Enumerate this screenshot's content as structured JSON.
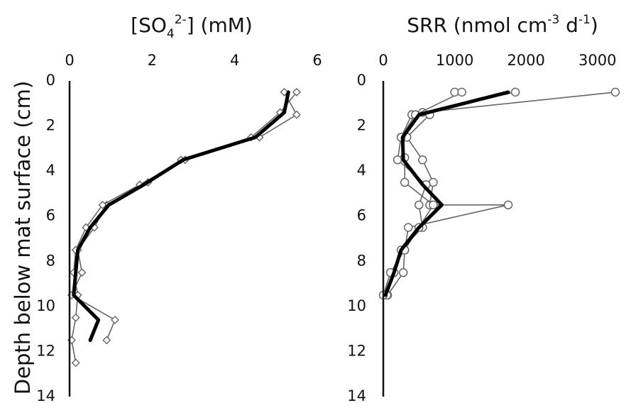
{
  "ylabel": "Depth below mat surface (cm)",
  "chart_data": [
    {
      "type": "line",
      "title": "[SO4 2-] (mM)",
      "title_parts": {
        "pre": "[SO",
        "sub": "4",
        "sup": "2-",
        "post": "] (mM)"
      },
      "xlim": [
        0,
        6
      ],
      "ylim": [
        0,
        14
      ],
      "x_ticks": [
        "0",
        "2",
        "4",
        "6"
      ],
      "y_ticks": [
        "0",
        "2",
        "4",
        "6",
        "8",
        "10",
        "12",
        "14"
      ],
      "ylabel": "Depth below mat surface (cm)",
      "series": [
        {
          "style": "replicate",
          "marker": "diamond",
          "points": [
            [
              5.2,
              0.5
            ],
            [
              5.5,
              1.5
            ],
            [
              4.6,
              2.5
            ],
            [
              2.7,
              3.5
            ],
            [
              1.9,
              4.5
            ],
            [
              0.9,
              5.5
            ],
            [
              0.6,
              6.5
            ],
            [
              0.2,
              7.5
            ],
            [
              0.3,
              8.5
            ],
            [
              0.05,
              9.5
            ],
            [
              1.1,
              10.6
            ],
            [
              0.9,
              11.5
            ]
          ]
        },
        {
          "style": "replicate",
          "marker": "diamond",
          "points": [
            [
              5.5,
              0.5
            ],
            [
              5.1,
              1.4
            ],
            [
              4.4,
              2.5
            ],
            [
              2.8,
              3.5
            ],
            [
              1.7,
              4.6
            ],
            [
              0.8,
              5.5
            ],
            [
              0.4,
              6.5
            ],
            [
              0.15,
              7.5
            ],
            [
              0.1,
              8.5
            ],
            [
              0.2,
              9.5
            ],
            [
              0.15,
              10.5
            ],
            [
              0.05,
              11.5
            ],
            [
              0.15,
              12.5
            ]
          ]
        },
        {
          "style": "mean",
          "marker": "none",
          "points": [
            [
              5.3,
              0.5
            ],
            [
              5.2,
              1.4
            ],
            [
              4.5,
              2.5
            ],
            [
              2.75,
              3.5
            ],
            [
              1.8,
              4.6
            ],
            [
              0.95,
              5.5
            ],
            [
              0.5,
              6.5
            ],
            [
              0.2,
              7.5
            ],
            [
              0.15,
              8.5
            ],
            [
              0.1,
              9.5
            ],
            [
              0.7,
              10.6
            ],
            [
              0.5,
              11.5
            ]
          ]
        }
      ]
    },
    {
      "type": "line",
      "title": "SRR (nmol cm-3 d-1)",
      "title_parts": {
        "pre": "SRR (nmol cm",
        "sup1": "-3",
        "mid": " d",
        "sup2": "-1",
        "post": ")"
      },
      "xlim": [
        0,
        3400
      ],
      "ylim": [
        0,
        14
      ],
      "x_ticks": [
        "0",
        "1000",
        "2000",
        "3000"
      ],
      "x_tick_values": [
        0,
        1000,
        2000,
        3000
      ],
      "y_ticks": [
        "0",
        "2",
        "4",
        "6",
        "8",
        "10",
        "12",
        "14"
      ],
      "series": [
        {
          "style": "replicate",
          "marker": "circle",
          "points": [
            [
              3250,
              0.5
            ],
            [
              550,
              1.4
            ],
            [
              650,
              1.5
            ],
            [
              330,
              2.5
            ],
            [
              550,
              3.5
            ],
            [
              700,
              4.5
            ],
            [
              650,
              5.5
            ],
            [
              1750,
              5.5
            ],
            [
              350,
              6.5
            ],
            [
              300,
              7.5
            ],
            [
              280,
              8.5
            ],
            [
              60,
              9.5
            ]
          ]
        },
        {
          "style": "replicate",
          "marker": "circle",
          "points": [
            [
              1850,
              0.5
            ],
            [
              400,
              1.5
            ],
            [
              250,
              2.5
            ],
            [
              200,
              3.5
            ],
            [
              600,
              4.6
            ],
            [
              500,
              5.5
            ],
            [
              550,
              6.5
            ],
            [
              250,
              7.5
            ],
            [
              150,
              8.5
            ],
            [
              50,
              9.5
            ]
          ]
        },
        {
          "style": "replicate",
          "marker": "circle",
          "points": [
            [
              1000,
              0.5
            ],
            [
              1100,
              0.5
            ],
            [
              450,
              1.5
            ],
            [
              250,
              2.5
            ],
            [
              300,
              3.4
            ],
            [
              300,
              4.5
            ],
            [
              700,
              5.5
            ],
            [
              500,
              6.5
            ],
            [
              300,
              7.5
            ],
            [
              100,
              8.5
            ],
            [
              0,
              9.5
            ]
          ]
        },
        {
          "style": "mean",
          "marker": "none",
          "points": [
            [
              1750,
              0.5
            ],
            [
              500,
              1.5
            ],
            [
              270,
              2.5
            ],
            [
              280,
              3.5
            ],
            [
              550,
              4.6
            ],
            [
              820,
              5.5
            ],
            [
              500,
              6.5
            ],
            [
              250,
              7.5
            ],
            [
              150,
              8.5
            ],
            [
              30,
              9.5
            ]
          ]
        }
      ]
    }
  ]
}
